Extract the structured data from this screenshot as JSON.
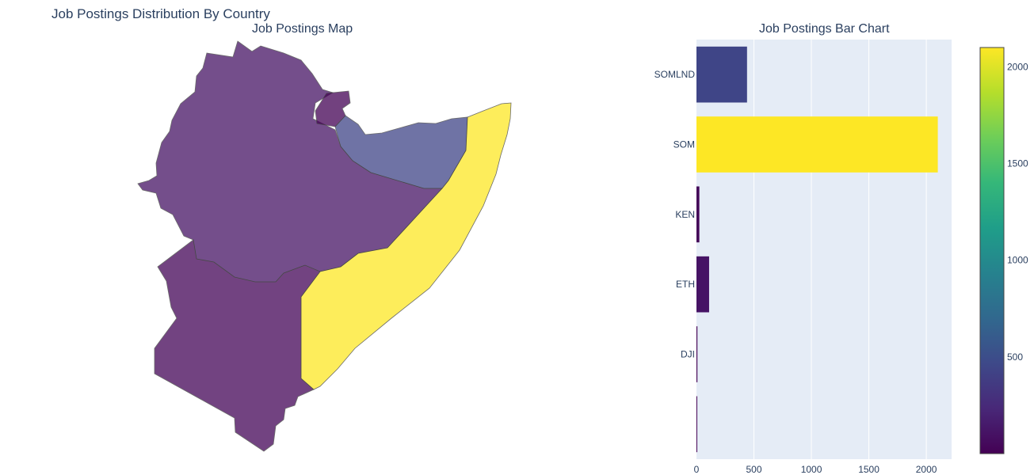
{
  "title": "Job Postings Distribution By Country",
  "map": {
    "title": "Job Postings Map"
  },
  "chart_data": [
    {
      "type": "choropleth",
      "title": "Job Postings Map",
      "locations": [
        "ETH",
        "KEN",
        "SOM",
        "SOMLND",
        "DJI"
      ],
      "values": [
        110,
        25,
        2100,
        440,
        8
      ]
    },
    {
      "type": "bar",
      "orientation": "h",
      "title": "Job Postings Bar Chart",
      "categories": [
        "SOMLND",
        "SOM",
        "KEN",
        "ETH",
        "DJI",
        ""
      ],
      "values": [
        440,
        2100,
        25,
        110,
        8,
        0
      ],
      "xlim": [
        0,
        2220
      ],
      "xticks": [
        0,
        500,
        1000,
        1500,
        2000
      ],
      "grid": true,
      "colorbar": {
        "colorscale": "Viridis",
        "range": [
          0,
          2100
        ],
        "ticks": [
          500,
          1000,
          1500,
          2000
        ]
      }
    }
  ],
  "colors": {
    "viridis": [
      "#440154",
      "#482878",
      "#3e4989",
      "#31688e",
      "#26828e",
      "#1f9e89",
      "#35b779",
      "#6ece58",
      "#b5de2b",
      "#fde725"
    ],
    "plot_bg": "#e5ecf6"
  }
}
